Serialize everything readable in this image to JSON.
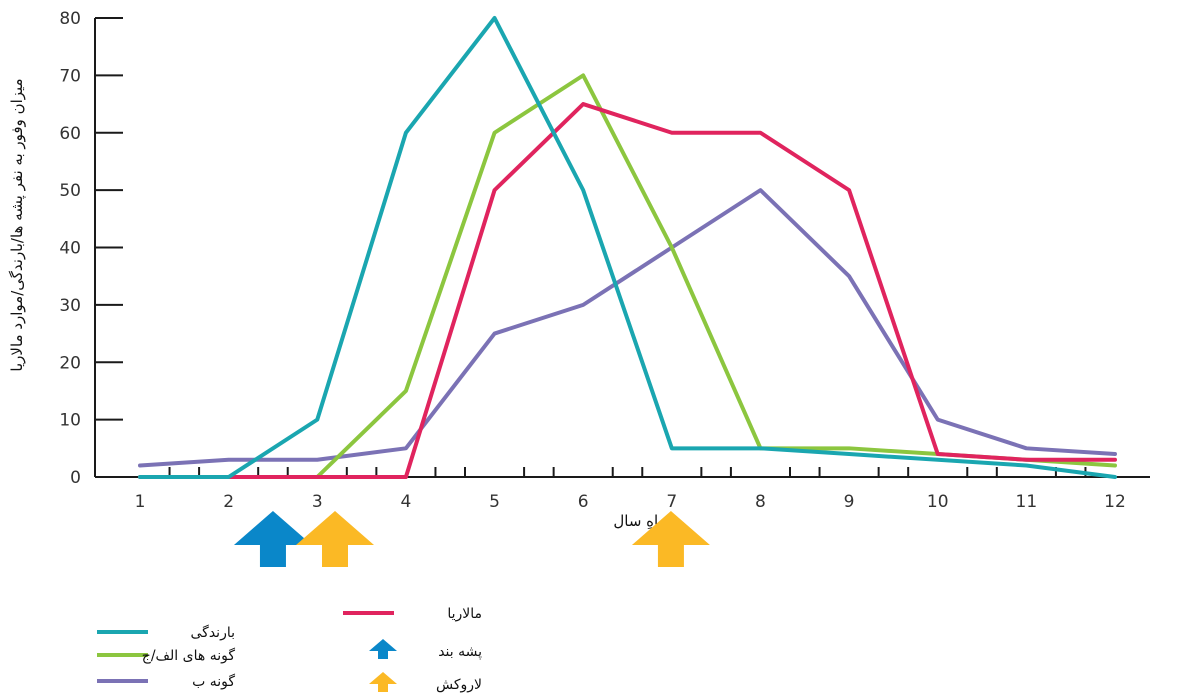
{
  "chart_data": {
    "type": "line",
    "xlabel": "ماهِ سال",
    "ylabel": "میزان وفور به نفر پشه ها/بارندگی/موارد مالاریا",
    "x": [
      1,
      2,
      3,
      4,
      5,
      6,
      7,
      8,
      9,
      10,
      11,
      12
    ],
    "xlim": [
      1,
      12
    ],
    "ylim": [
      0,
      80
    ],
    "yticks": [
      0,
      10,
      20,
      30,
      40,
      50,
      60,
      70,
      80
    ],
    "grid": false,
    "legend_position": "bottom-left",
    "series": [
      {
        "name": "بارندگی",
        "color": "#1aa6b0",
        "values": [
          0,
          0,
          10,
          60,
          80,
          50,
          5,
          5,
          4,
          3,
          2,
          0
        ]
      },
      {
        "name": "گونه های الف/ج",
        "color": "#8cc63f",
        "values": [
          0,
          0,
          0,
          15,
          60,
          70,
          40,
          5,
          5,
          4,
          3,
          2
        ]
      },
      {
        "name": "گونه ب",
        "color": "#7b72b5",
        "values": [
          2,
          3,
          3,
          5,
          25,
          30,
          40,
          50,
          35,
          10,
          5,
          4
        ]
      },
      {
        "name": "مالاریا",
        "color": "#e0245e",
        "values": [
          0,
          0,
          0,
          0,
          50,
          65,
          60,
          60,
          50,
          4,
          3,
          3
        ]
      }
    ],
    "markers": [
      {
        "name": "پشه بند",
        "color": "#0a87c9",
        "icon": "arrow-up-icon",
        "x": 2.5
      },
      {
        "name": "لاروکش",
        "color": "#fbb925",
        "icon": "arrow-up-icon",
        "x": [
          3.2,
          6.99
        ]
      }
    ]
  }
}
